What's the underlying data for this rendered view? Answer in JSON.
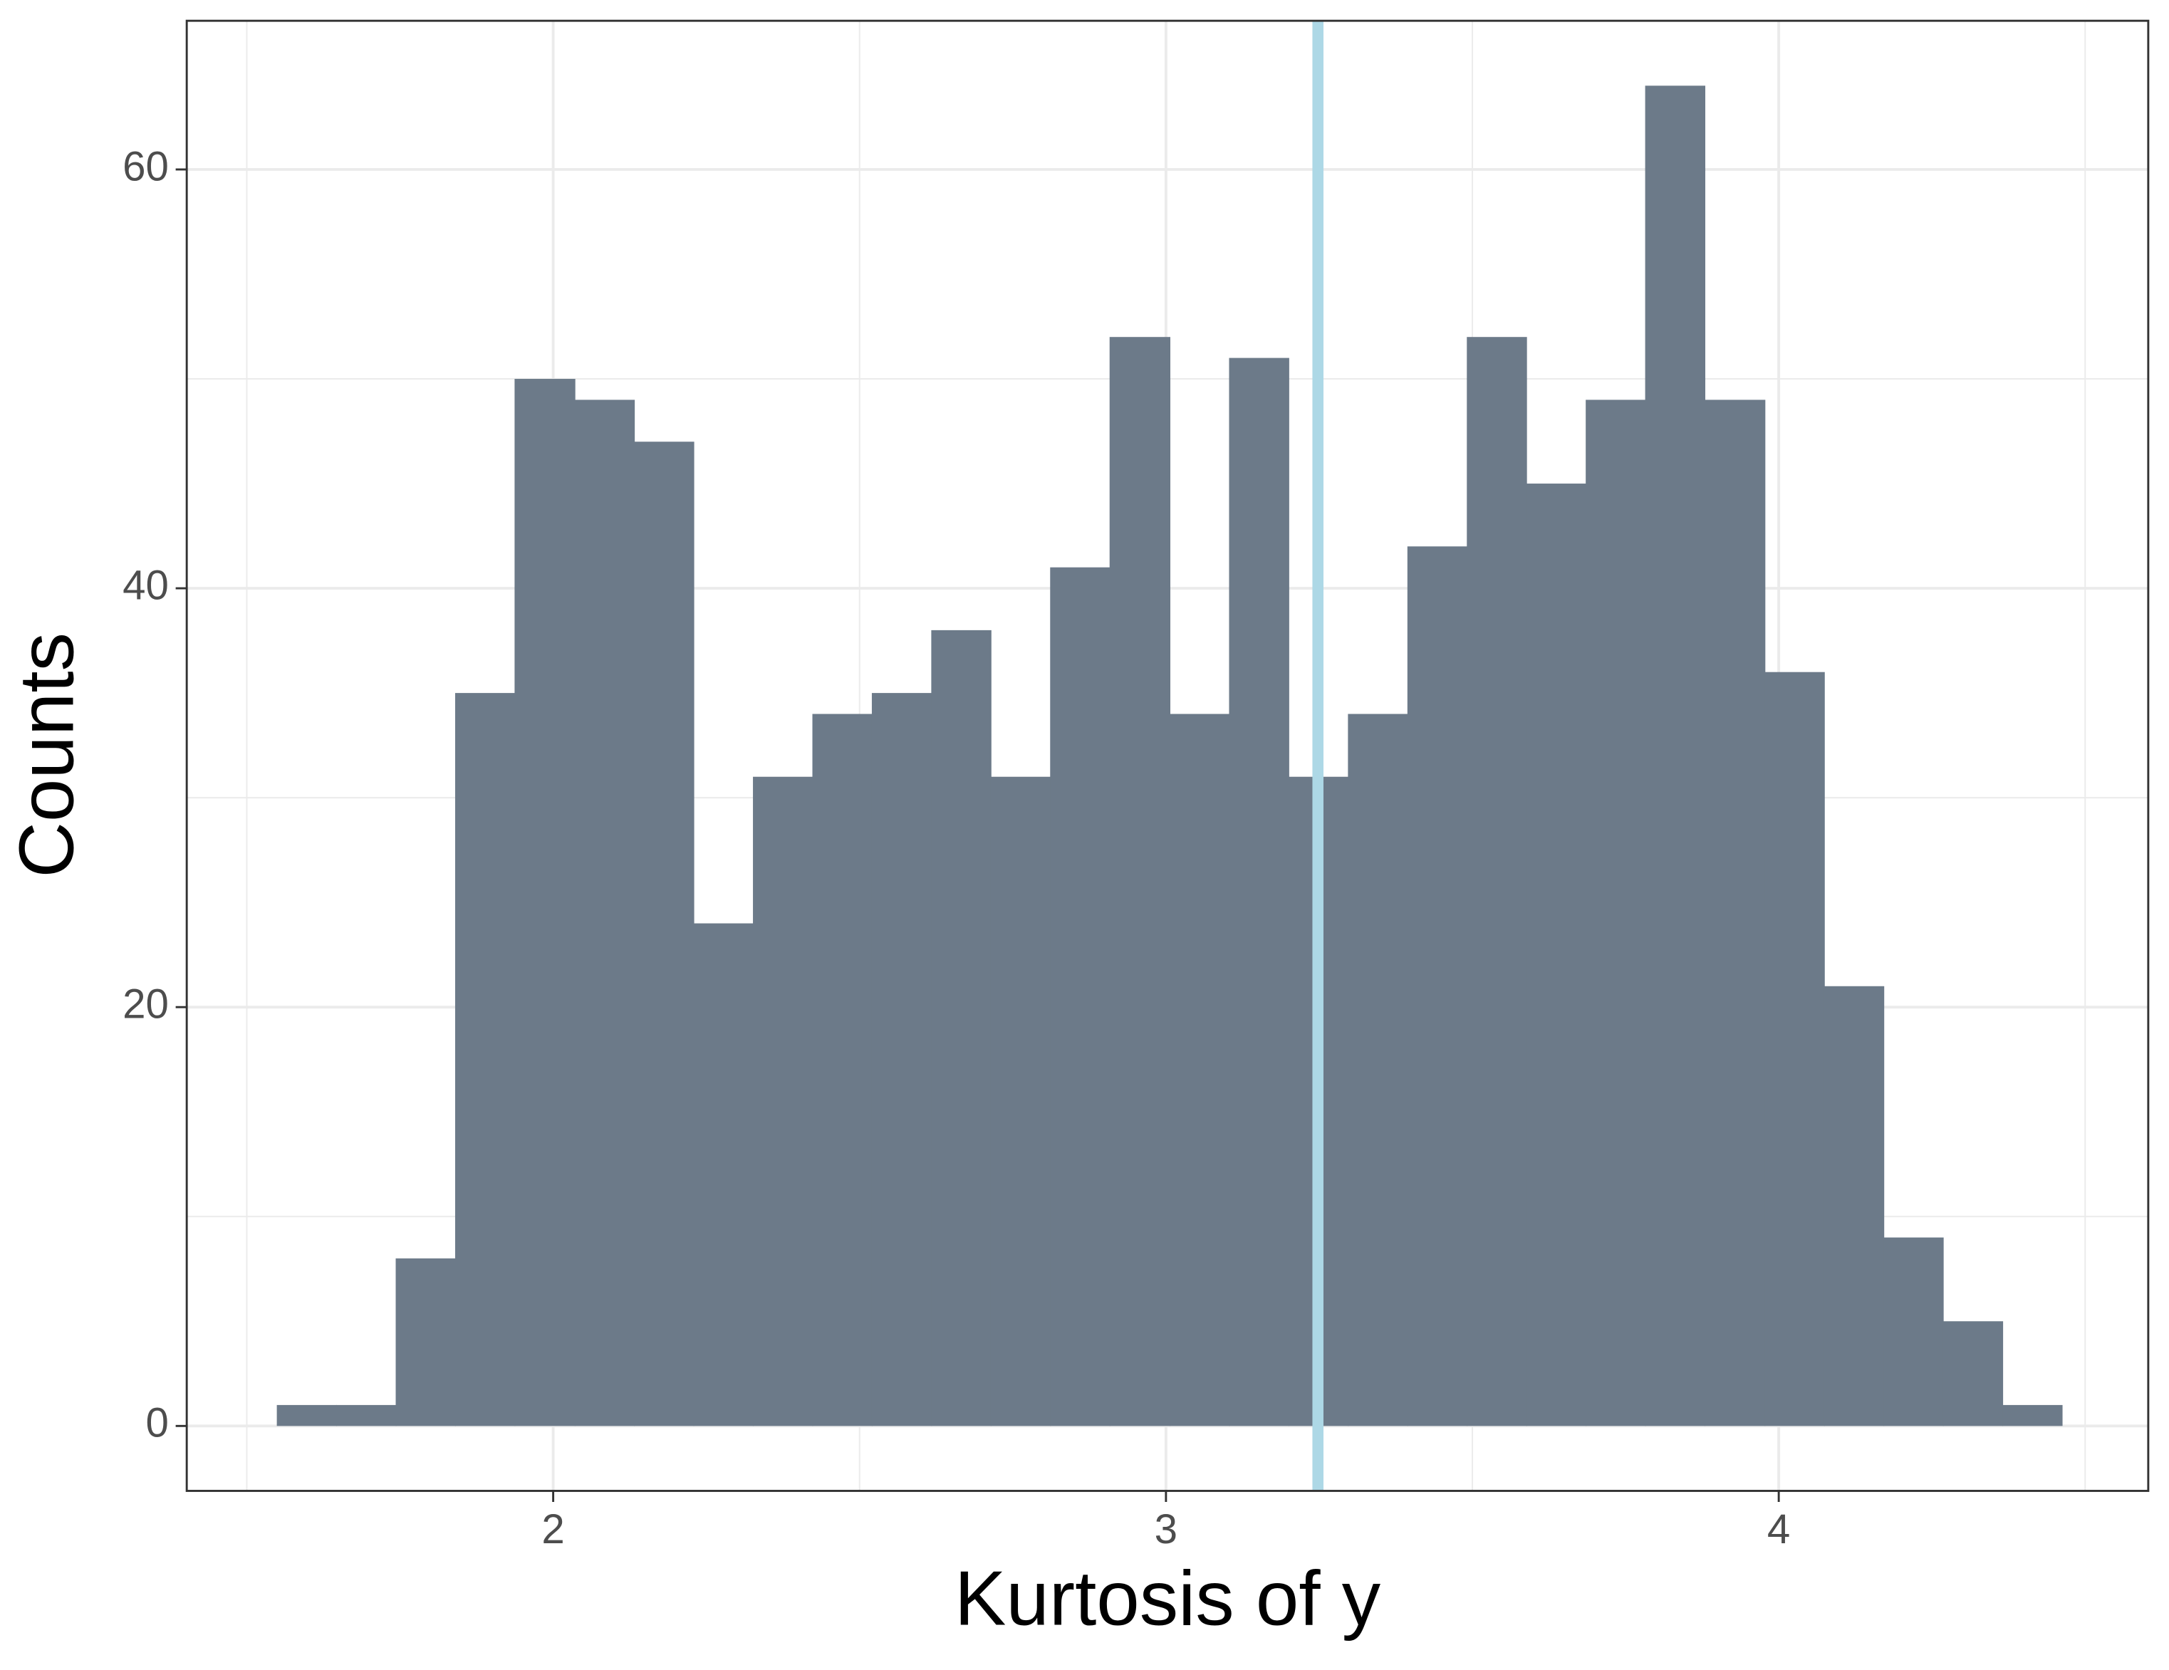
{
  "chart_data": {
    "type": "histogram",
    "x_label": "Kurtosis of y",
    "y_label": "Counts",
    "bins": [
      1.549,
      1.646,
      1.743,
      1.84,
      1.937,
      2.035,
      2.132,
      2.229,
      2.326,
      2.423,
      2.52,
      2.617,
      2.714,
      2.811,
      2.908,
      3.006,
      3.103,
      3.2,
      3.297,
      3.394,
      3.491,
      3.588,
      3.685,
      3.782,
      3.879,
      3.977,
      4.074,
      4.171,
      4.268,
      4.365,
      4.462
    ],
    "values": [
      1,
      1,
      8,
      35,
      50,
      49,
      47,
      24,
      31,
      34,
      35,
      38,
      31,
      41,
      52,
      34,
      51,
      31,
      34,
      42,
      52,
      45,
      49,
      64,
      49,
      36,
      21,
      9,
      5,
      1
    ],
    "color": "#6c7a89",
    "vline": 3.248,
    "vline_color": "#add8e6",
    "xlim": [
      1.402,
      4.603
    ],
    "xticks": [
      2,
      3,
      4
    ],
    "x_minor_ticks": [
      1.5,
      2.5,
      3.5,
      4.5
    ],
    "ylim": [
      -3.1,
      67.1
    ],
    "yticks": [
      0,
      20,
      40,
      60
    ],
    "y_minor_ticks": [
      10,
      30,
      50
    ],
    "grid": true
  }
}
